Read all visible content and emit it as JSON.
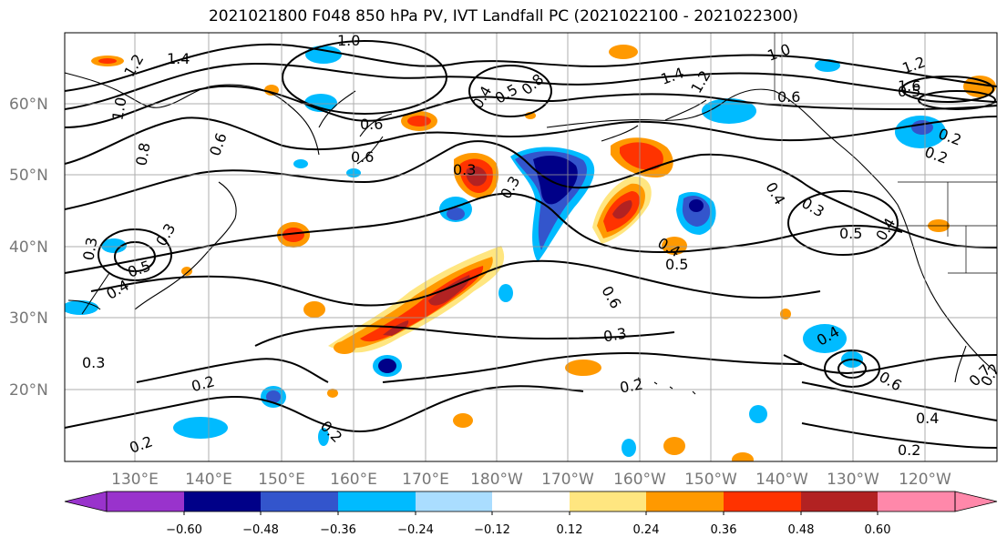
{
  "title": "2021021800 F048 850 hPa PV, IVT Landfall PC (2021022100 - 2021022300)",
  "lat_labels": [
    "60°N",
    "50°N",
    "40°N",
    "30°N",
    "20°N"
  ],
  "lon_labels": [
    "130°E",
    "140°E",
    "150°E",
    "160°E",
    "170°E",
    "180°W",
    "170°W",
    "160°W",
    "150°W",
    "140°W",
    "130°W",
    "120°W"
  ],
  "colorbar": {
    "colors": [
      "#9933cc",
      "#000088",
      "#3355cc",
      "#00bbff",
      "#aaddff",
      "#ffffff",
      "#ffffff",
      "#ffe680",
      "#ff9900",
      "#ff3300",
      "#b22222",
      "#ff88aa"
    ],
    "ticks": [
      "−0.60",
      "−0.48",
      "−0.36",
      "−0.24",
      "−0.12",
      "0.12",
      "0.24",
      "0.36",
      "0.48",
      "0.60"
    ]
  },
  "contour_labels": [
    "1.4",
    "1.2",
    "1.0",
    "0.8",
    "0.6",
    "0.5",
    "0.4",
    "0.3",
    "0.2",
    "1.4",
    "1.2",
    "1.0",
    "0.6",
    "0.8",
    "0.5",
    "0.4",
    "0.3",
    "0.3",
    "0.5",
    "0.6",
    "0.4",
    "0.2",
    "0.4",
    "0.2",
    "0.3",
    "0.2",
    "0.5",
    "0.6",
    "0.4",
    "0.3",
    "0.5",
    "0.3",
    "0.6",
    "0.2",
    "0.2",
    "0.4",
    "0.2",
    "0.3",
    "1.6",
    "0.2",
    "0.6",
    "0.4",
    "0.7",
    "1.2",
    "1.0"
  ]
}
